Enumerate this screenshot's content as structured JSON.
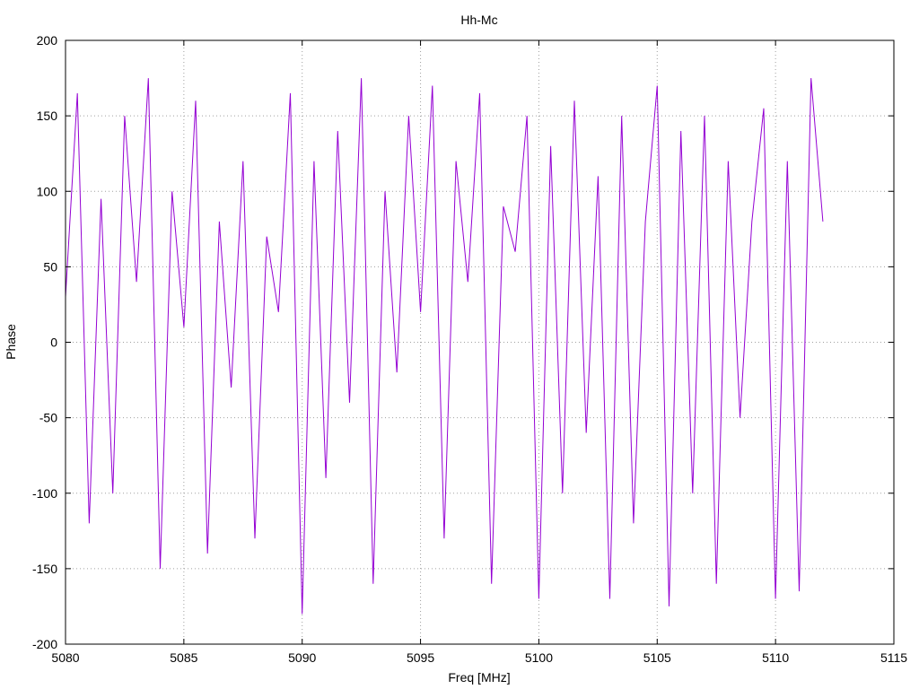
{
  "chart_data": {
    "type": "line",
    "title": "Hh-Mc",
    "xlabel": "Freq [MHz]",
    "ylabel": "Phase",
    "xlim": [
      5080,
      5115
    ],
    "ylim": [
      -200,
      200
    ],
    "xticks": [
      5080,
      5085,
      5090,
      5095,
      5100,
      5105,
      5110,
      5115
    ],
    "yticks": [
      -200,
      -150,
      -100,
      -50,
      0,
      50,
      100,
      150,
      200
    ],
    "grid": true,
    "legend": "none",
    "series": [
      {
        "color": "#9400d3",
        "x": [
          5080.0,
          5080.5,
          5081.0,
          5081.5,
          5082.0,
          5082.5,
          5083.0,
          5083.5,
          5084.0,
          5084.5,
          5085.0,
          5085.5,
          5086.0,
          5086.5,
          5087.0,
          5087.5,
          5088.0,
          5088.5,
          5089.0,
          5089.5,
          5090.0,
          5090.5,
          5091.0,
          5091.5,
          5092.0,
          5092.5,
          5093.0,
          5093.5,
          5094.0,
          5094.5,
          5095.0,
          5095.5,
          5096.0,
          5096.5,
          5097.0,
          5097.5,
          5098.0,
          5098.5,
          5099.0,
          5099.5,
          5100.0,
          5100.5,
          5101.0,
          5101.5,
          5102.0,
          5102.5,
          5103.0,
          5103.5,
          5104.0,
          5104.5,
          5105.0,
          5105.5,
          5106.0,
          5106.5,
          5107.0,
          5107.5,
          5108.0,
          5108.5,
          5109.0,
          5109.5,
          5110.0,
          5110.5,
          5111.0,
          5111.5,
          5112.0
        ],
        "y": [
          30,
          165,
          -120,
          95,
          -100,
          150,
          40,
          175,
          -150,
          100,
          10,
          160,
          -140,
          80,
          -30,
          120,
          -130,
          70,
          20,
          165,
          -180,
          120,
          -90,
          140,
          -40,
          175,
          -160,
          100,
          -20,
          150,
          20,
          170,
          -130,
          120,
          40,
          165,
          -160,
          90,
          60,
          150,
          -170,
          130,
          -100,
          160,
          -60,
          110,
          -170,
          150,
          -120,
          80,
          170,
          -175,
          140,
          -100,
          150,
          -160,
          120,
          -50,
          80,
          155,
          -170,
          120,
          -165,
          175,
          80
        ]
      }
    ]
  }
}
